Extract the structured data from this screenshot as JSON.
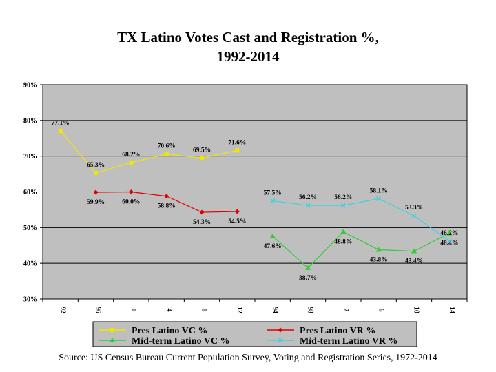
{
  "chart_data": {
    "type": "line",
    "title_line1": "TX Latino Votes Cast and Registration %,",
    "title_line2": "1992-2014",
    "categories": [
      "92",
      "96",
      "0",
      "4",
      "8",
      "12",
      "94",
      "98",
      "2",
      "6",
      "10",
      "14"
    ],
    "ylim": [
      30,
      90
    ],
    "yticks": [
      "30%",
      "40%",
      "50%",
      "60%",
      "70%",
      "80%",
      "90%"
    ],
    "series": [
      {
        "name": "Pres Latino VC %",
        "color": "#f2e600",
        "marker": "square",
        "values": [
          77.1,
          65.3,
          68.2,
          70.6,
          69.5,
          71.6,
          null,
          null,
          null,
          null,
          null,
          null
        ],
        "labels": [
          "77.1%",
          "65.3%",
          "68.2%",
          "70.6%",
          "69.5%",
          "71.6%"
        ]
      },
      {
        "name": "Pres Latino VR %",
        "color": "#e00000",
        "marker": "diamond",
        "values": [
          null,
          59.9,
          60.0,
          58.8,
          54.3,
          54.5,
          null,
          null,
          null,
          null,
          null,
          null
        ],
        "labels": [
          "59.9%",
          "60.0%",
          "58.8%",
          "54.3%",
          "54.5%"
        ]
      },
      {
        "name": "Mid-term Latino VC %",
        "color": "#33cc33",
        "marker": "triangle",
        "values": [
          null,
          null,
          null,
          null,
          null,
          null,
          47.6,
          38.7,
          48.8,
          43.8,
          43.4,
          48.4
        ],
        "labels": [
          "47.6%",
          "38.7%",
          "48.8%",
          "43.8%",
          "43.4%",
          "48.4%"
        ]
      },
      {
        "name": "Mid-term Latino VR %",
        "color": "#40d0e0",
        "marker": "x",
        "values": [
          null,
          null,
          null,
          null,
          null,
          null,
          57.5,
          56.2,
          56.2,
          58.1,
          53.3,
          46.2
        ],
        "labels": [
          "57.5%",
          "56.2%",
          "56.2%",
          "58.1%",
          "53.3%",
          "46.2%"
        ]
      }
    ]
  },
  "source": "Source: US Census Bureau Current Population Survey, Voting and Registration Series, 1972-2014"
}
